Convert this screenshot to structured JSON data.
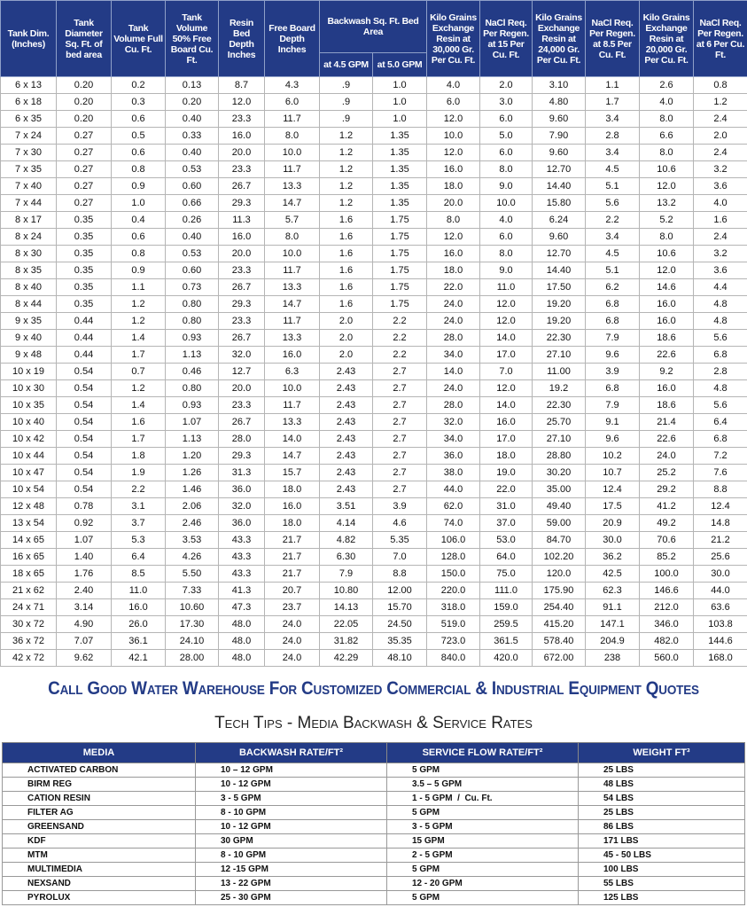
{
  "table1": {
    "columns_before": [
      "Tank Dim. (Inches)",
      "Tank Diameter Sq. Ft. of bed area",
      "Tank Volume Full Cu. Ft.",
      "Tank Volume 50% Free Board Cu. Ft.",
      "Resin Bed Depth Inches",
      "Free Board Depth Inches"
    ],
    "backwash": {
      "title": "Backwash Sq. Ft. Bed Area",
      "sub": [
        "at 4.5 GPM",
        "at 5.0 GPM"
      ]
    },
    "columns_after": [
      "Kilo Grains Exchange Resin at 30,000 Gr. Per Cu. Ft.",
      "NaCl Req. Per Regen. at 15 Per Cu. Ft.",
      "Kilo Grains Exchange Resin at 24,000 Gr. Per Cu. Ft.",
      "NaCl Req. Per Regen. at 8.5 Per Cu. Ft.",
      "Kilo Grains Exchange Resin at 20,000 Gr. Per Cu. Ft.",
      "NaCl Req. Per Regen. at 6 Per Cu. Ft."
    ],
    "rows": [
      [
        "6 x 13",
        "0.20",
        "0.2",
        "0.13",
        "8.7",
        "4.3",
        ".9",
        "1.0",
        "4.0",
        "2.0",
        "3.10",
        "1.1",
        "2.6",
        "0.8"
      ],
      [
        "6 x 18",
        "0.20",
        "0.3",
        "0.20",
        "12.0",
        "6.0",
        ".9",
        "1.0",
        "6.0",
        "3.0",
        "4.80",
        "1.7",
        "4.0",
        "1.2"
      ],
      [
        "6 x 35",
        "0.20",
        "0.6",
        "0.40",
        "23.3",
        "11.7",
        ".9",
        "1.0",
        "12.0",
        "6.0",
        "9.60",
        "3.4",
        "8.0",
        "2.4"
      ],
      [
        "7 x 24",
        "0.27",
        "0.5",
        "0.33",
        "16.0",
        "8.0",
        "1.2",
        "1.35",
        "10.0",
        "5.0",
        "7.90",
        "2.8",
        "6.6",
        "2.0"
      ],
      [
        "7 x 30",
        "0.27",
        "0.6",
        "0.40",
        "20.0",
        "10.0",
        "1.2",
        "1.35",
        "12.0",
        "6.0",
        "9.60",
        "3.4",
        "8.0",
        "2.4"
      ],
      [
        "7 x 35",
        "0.27",
        "0.8",
        "0.53",
        "23.3",
        "11.7",
        "1.2",
        "1.35",
        "16.0",
        "8.0",
        "12.70",
        "4.5",
        "10.6",
        "3.2"
      ],
      [
        "7 x 40",
        "0.27",
        "0.9",
        "0.60",
        "26.7",
        "13.3",
        "1.2",
        "1.35",
        "18.0",
        "9.0",
        "14.40",
        "5.1",
        "12.0",
        "3.6"
      ],
      [
        "7 x 44",
        "0.27",
        "1.0",
        "0.66",
        "29.3",
        "14.7",
        "1.2",
        "1.35",
        "20.0",
        "10.0",
        "15.80",
        "5.6",
        "13.2",
        "4.0"
      ],
      [
        "8 x 17",
        "0.35",
        "0.4",
        "0.26",
        "11.3",
        "5.7",
        "1.6",
        "1.75",
        "8.0",
        "4.0",
        "6.24",
        "2.2",
        "5.2",
        "1.6"
      ],
      [
        "8 x 24",
        "0.35",
        "0.6",
        "0.40",
        "16.0",
        "8.0",
        "1.6",
        "1.75",
        "12.0",
        "6.0",
        "9.60",
        "3.4",
        "8.0",
        "2.4"
      ],
      [
        "8 x 30",
        "0.35",
        "0.8",
        "0.53",
        "20.0",
        "10.0",
        "1.6",
        "1.75",
        "16.0",
        "8.0",
        "12.70",
        "4.5",
        "10.6",
        "3.2"
      ],
      [
        "8 x 35",
        "0.35",
        "0.9",
        "0.60",
        "23.3",
        "11.7",
        "1.6",
        "1.75",
        "18.0",
        "9.0",
        "14.40",
        "5.1",
        "12.0",
        "3.6"
      ],
      [
        "8 x 40",
        "0.35",
        "1.1",
        "0.73",
        "26.7",
        "13.3",
        "1.6",
        "1.75",
        "22.0",
        "11.0",
        "17.50",
        "6.2",
        "14.6",
        "4.4"
      ],
      [
        "8 x 44",
        "0.35",
        "1.2",
        "0.80",
        "29.3",
        "14.7",
        "1.6",
        "1.75",
        "24.0",
        "12.0",
        "19.20",
        "6.8",
        "16.0",
        "4.8"
      ],
      [
        "9 x 35",
        "0.44",
        "1.2",
        "0.80",
        "23.3",
        "11.7",
        "2.0",
        "2.2",
        "24.0",
        "12.0",
        "19.20",
        "6.8",
        "16.0",
        "4.8"
      ],
      [
        "9 x 40",
        "0.44",
        "1.4",
        "0.93",
        "26.7",
        "13.3",
        "2.0",
        "2.2",
        "28.0",
        "14.0",
        "22.30",
        "7.9",
        "18.6",
        "5.6"
      ],
      [
        "9 x 48",
        "0.44",
        "1.7",
        "1.13",
        "32.0",
        "16.0",
        "2.0",
        "2.2",
        "34.0",
        "17.0",
        "27.10",
        "9.6",
        "22.6",
        "6.8"
      ],
      [
        "10 x 19",
        "0.54",
        "0.7",
        "0.46",
        "12.7",
        "6.3",
        "2.43",
        "2.7",
        "14.0",
        "7.0",
        "11.00",
        "3.9",
        "9.2",
        "2.8"
      ],
      [
        "10 x 30",
        "0.54",
        "1.2",
        "0.80",
        "20.0",
        "10.0",
        "2.43",
        "2.7",
        "24.0",
        "12.0",
        "19.2",
        "6.8",
        "16.0",
        "4.8"
      ],
      [
        "10 x 35",
        "0.54",
        "1.4",
        "0.93",
        "23.3",
        "11.7",
        "2.43",
        "2.7",
        "28.0",
        "14.0",
        "22.30",
        "7.9",
        "18.6",
        "5.6"
      ],
      [
        "10 x 40",
        "0.54",
        "1.6",
        "1.07",
        "26.7",
        "13.3",
        "2.43",
        "2.7",
        "32.0",
        "16.0",
        "25.70",
        "9.1",
        "21.4",
        "6.4"
      ],
      [
        "10 x 42",
        "0.54",
        "1.7",
        "1.13",
        "28.0",
        "14.0",
        "2.43",
        "2.7",
        "34.0",
        "17.0",
        "27.10",
        "9.6",
        "22.6",
        "6.8"
      ],
      [
        "10 x 44",
        "0.54",
        "1.8",
        "1.20",
        "29.3",
        "14.7",
        "2.43",
        "2.7",
        "36.0",
        "18.0",
        "28.80",
        "10.2",
        "24.0",
        "7.2"
      ],
      [
        "10 x 47",
        "0.54",
        "1.9",
        "1.26",
        "31.3",
        "15.7",
        "2.43",
        "2.7",
        "38.0",
        "19.0",
        "30.20",
        "10.7",
        "25.2",
        "7.6"
      ],
      [
        "10 x 54",
        "0.54",
        "2.2",
        "1.46",
        "36.0",
        "18.0",
        "2.43",
        "2.7",
        "44.0",
        "22.0",
        "35.00",
        "12.4",
        "29.2",
        "8.8"
      ],
      [
        "12 x 48",
        "0.78",
        "3.1",
        "2.06",
        "32.0",
        "16.0",
        "3.51",
        "3.9",
        "62.0",
        "31.0",
        "49.40",
        "17.5",
        "41.2",
        "12.4"
      ],
      [
        "13 x 54",
        "0.92",
        "3.7",
        "2.46",
        "36.0",
        "18.0",
        "4.14",
        "4.6",
        "74.0",
        "37.0",
        "59.00",
        "20.9",
        "49.2",
        "14.8"
      ],
      [
        "14 x 65",
        "1.07",
        "5.3",
        "3.53",
        "43.3",
        "21.7",
        "4.82",
        "5.35",
        "106.0",
        "53.0",
        "84.70",
        "30.0",
        "70.6",
        "21.2"
      ],
      [
        "16 x 65",
        "1.40",
        "6.4",
        "4.26",
        "43.3",
        "21.7",
        "6.30",
        "7.0",
        "128.0",
        "64.0",
        "102.20",
        "36.2",
        "85.2",
        "25.6"
      ],
      [
        "18 x 65",
        "1.76",
        "8.5",
        "5.50",
        "43.3",
        "21.7",
        "7.9",
        "8.8",
        "150.0",
        "75.0",
        "120.0",
        "42.5",
        "100.0",
        "30.0"
      ],
      [
        "21 x 62",
        "2.40",
        "11.0",
        "7.33",
        "41.3",
        "20.7",
        "10.80",
        "12.00",
        "220.0",
        "111.0",
        "175.90",
        "62.3",
        "146.6",
        "44.0"
      ],
      [
        "24 x 71",
        "3.14",
        "16.0",
        "10.60",
        "47.3",
        "23.7",
        "14.13",
        "15.70",
        "318.0",
        "159.0",
        "254.40",
        "91.1",
        "212.0",
        "63.6"
      ],
      [
        "30 x 72",
        "4.90",
        "26.0",
        "17.30",
        "48.0",
        "24.0",
        "22.05",
        "24.50",
        "519.0",
        "259.5",
        "415.20",
        "147.1",
        "346.0",
        "103.8"
      ],
      [
        "36 x 72",
        "7.07",
        "36.1",
        "24.10",
        "48.0",
        "24.0",
        "31.82",
        "35.35",
        "723.0",
        "361.5",
        "578.40",
        "204.9",
        "482.0",
        "144.6"
      ],
      [
        "42 x 72",
        "9.62",
        "42.1",
        "28.00",
        "48.0",
        "24.0",
        "42.29",
        "48.10",
        "840.0",
        "420.0",
        "672.00",
        "238",
        "560.0",
        "168.0"
      ]
    ]
  },
  "banner": "Call Good Water Warehouse For Customized Commercial & Industrial Equipment Quotes",
  "tips_title": "Tech Tips - Media Backwash & Service Rates",
  "table2": {
    "header": [
      "MEDIA",
      "BACKWASH RATE/FT²",
      "SERVICE FLOW RATE/FT²",
      "WEIGHT FT³"
    ],
    "rows": [
      [
        "ACTIVATED CARBON",
        "10 – 12 GPM",
        "5 GPM",
        "25 LBS"
      ],
      [
        "BIRM REG",
        "10 - 12 GPM",
        "3.5 – 5 GPM",
        "48 LBS"
      ],
      [
        "CATION RESIN",
        "3 - 5 GPM",
        "1 - 5 GPM  /  Cu. Ft.",
        "54 LBS"
      ],
      [
        "FILTER AG",
        "8 - 10 GPM",
        "5 GPM",
        "25 LBS"
      ],
      [
        "GREENSAND",
        "10 - 12 GPM",
        "3 - 5 GPM",
        "86 LBS"
      ],
      [
        "KDF",
        "30 GPM",
        "15 GPM",
        "171 LBS"
      ],
      [
        "MTM",
        "8 - 10 GPM",
        "2 - 5 GPM",
        "45 - 50 LBS"
      ],
      [
        "MULTIMEDIA",
        "12 -15 GPM",
        "5 GPM",
        "100 LBS"
      ],
      [
        "NEXSAND",
        "13 - 22 GPM",
        "12 - 20 GPM",
        "55 LBS"
      ],
      [
        "PYROLUX",
        "25 - 30 GPM",
        "5 GPM",
        "125 LBS"
      ]
    ]
  }
}
